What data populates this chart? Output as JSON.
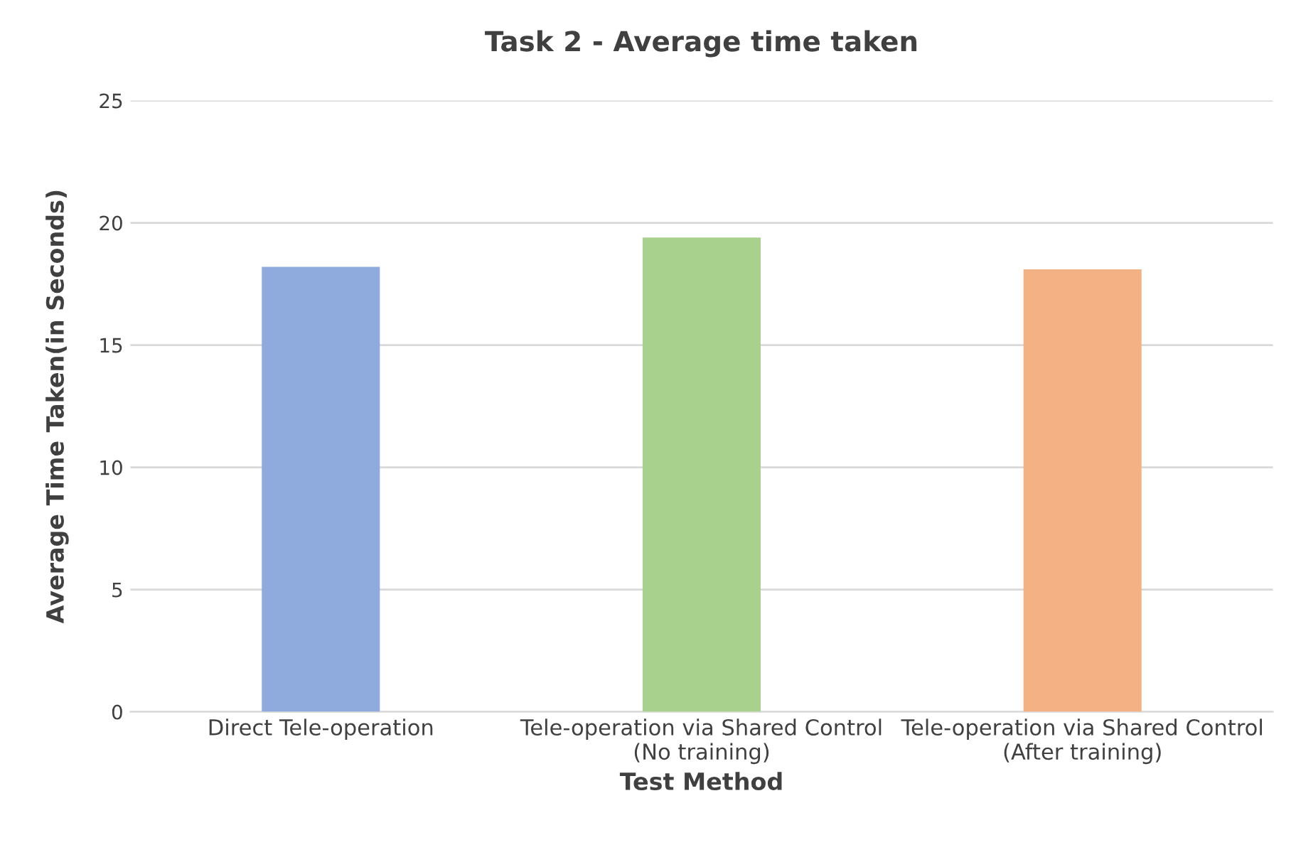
{
  "chart_data": {
    "type": "bar",
    "title": "Task 2 - Average time taken",
    "xlabel": "Test Method",
    "ylabel": "Average Time Taken(in Seconds)",
    "categories": [
      "Direct Tele-operation",
      "Tele-operation via Shared Control\n(No training)",
      "Tele-operation via Shared Control\n(After training)"
    ],
    "values": [
      18.2,
      19.4,
      18.1
    ],
    "colors": [
      "#8faadc",
      "#a9d18e",
      "#f4b183"
    ],
    "ylim": [
      0,
      25
    ],
    "yticks": [
      0,
      5,
      10,
      15,
      20,
      25
    ],
    "grid": "y",
    "legend": false
  }
}
